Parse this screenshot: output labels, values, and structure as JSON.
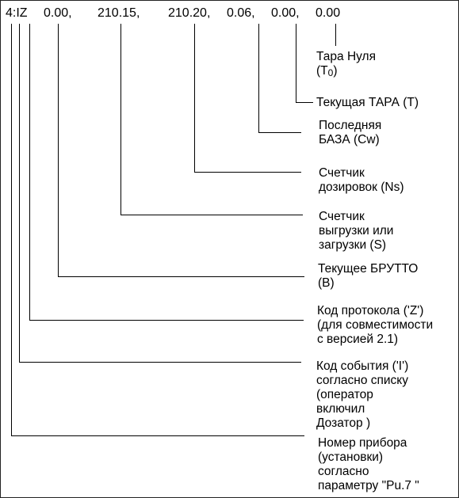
{
  "header_fields": [
    "4:IZ",
    "0.00,",
    "210.15,",
    "210.20,",
    "0.06,",
    "0.00,",
    "0.00"
  ],
  "labels": [
    {
      "lines": [
        "Тара Нуля"
      ],
      "last_prefix": "(T",
      "last_sub": "0",
      "last_suffix": ")"
    },
    {
      "lines": [
        "Текущая ТАРА (T)"
      ]
    },
    {
      "lines": [
        "Последняя",
        "БАЗА (Cw)"
      ]
    },
    {
      "lines": [
        "Счетчик",
        "дозировок (Ns)"
      ]
    },
    {
      "lines": [
        "Счетчик",
        "выгрузки или",
        "загрузки (S)"
      ]
    },
    {
      "lines": [
        "Текущее БРУТТО",
        "(B)"
      ]
    },
    {
      "lines": [
        "Код протокола ('Z')",
        "(для совместимости",
        "с версией 2.1)"
      ]
    },
    {
      "lines": [
        "Код события ('I')",
        "согласно списку",
        "(оператор",
        "включил",
        "Дозатор )"
      ]
    },
    {
      "lines": [
        "Номер прибора",
        "(установки)",
        "согласно",
        "параметру \"Pu.7 \""
      ]
    }
  ]
}
